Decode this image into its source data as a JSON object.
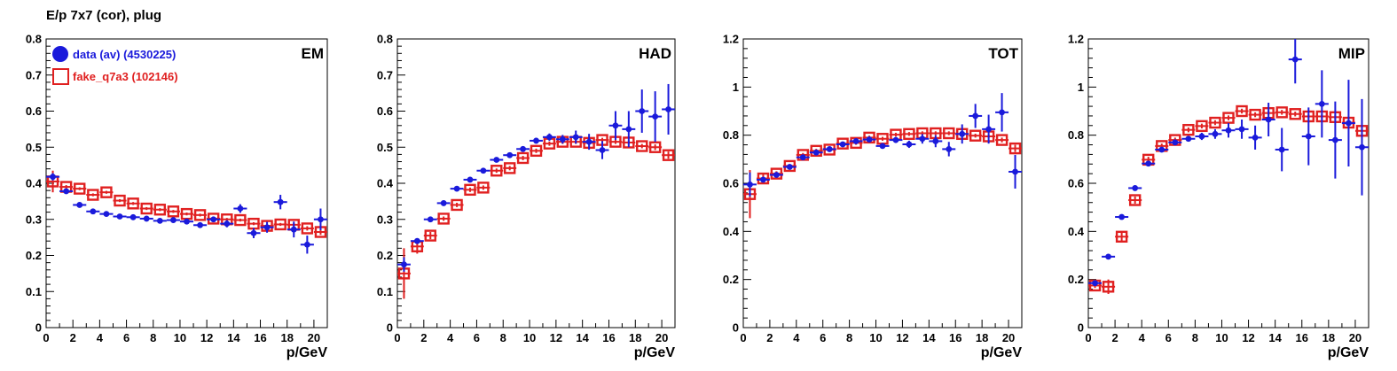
{
  "figure_title": "E/p 7x7 (cor), plug",
  "legend": {
    "entries": [
      {
        "label": "data (av) (4530225)",
        "color": "#1a1adb",
        "marker": "filled-circle"
      },
      {
        "label": "fake_q7a3 (102146)",
        "color": "#e02020",
        "marker": "open-square"
      }
    ]
  },
  "chart_data": [
    {
      "type": "scatter",
      "panel_label": "EM",
      "xlabel": "p/GeV",
      "ylabel": "",
      "xlim": [
        0,
        21
      ],
      "ylim": [
        0,
        0.8
      ],
      "xticks": [
        0,
        2,
        4,
        6,
        8,
        10,
        12,
        14,
        16,
        18,
        20
      ],
      "yticks": [
        0,
        0.1,
        0.2,
        0.3,
        0.4,
        0.5,
        0.6,
        0.7,
        0.8
      ],
      "ytick_labels": [
        "0",
        "0.1",
        "0.2",
        "0.3",
        "0.4",
        "0.5",
        "0.6",
        "0.7",
        "0.8"
      ],
      "series": [
        {
          "name": "data (av) (4530225)",
          "x": [
            0.5,
            1.5,
            2.5,
            3.5,
            4.5,
            5.5,
            6.5,
            7.5,
            8.5,
            9.5,
            10.5,
            11.5,
            12.5,
            13.5,
            14.5,
            15.5,
            16.5,
            17.5,
            18.5,
            19.5,
            20.5
          ],
          "y": [
            0.418,
            0.378,
            0.34,
            0.322,
            0.315,
            0.308,
            0.306,
            0.302,
            0.296,
            0.298,
            0.294,
            0.284,
            0.3,
            0.288,
            0.33,
            0.262,
            0.278,
            0.348,
            0.272,
            0.23,
            0.3
          ],
          "yerr": [
            0.01,
            0.005,
            0.004,
            0.004,
            0.004,
            0.004,
            0.004,
            0.004,
            0.005,
            0.005,
            0.006,
            0.007,
            0.008,
            0.01,
            0.012,
            0.014,
            0.015,
            0.02,
            0.022,
            0.025,
            0.03
          ]
        },
        {
          "name": "fake_q7a3 (102146)",
          "x": [
            0.5,
            1.5,
            2.5,
            3.5,
            4.5,
            5.5,
            6.5,
            7.5,
            8.5,
            9.5,
            10.5,
            11.5,
            12.5,
            13.5,
            14.5,
            15.5,
            16.5,
            17.5,
            18.5,
            19.5,
            20.5
          ],
          "y": [
            0.405,
            0.39,
            0.385,
            0.368,
            0.375,
            0.352,
            0.344,
            0.33,
            0.327,
            0.322,
            0.315,
            0.312,
            0.302,
            0.3,
            0.298,
            0.288,
            0.282,
            0.286,
            0.285,
            0.275,
            0.265
          ],
          "yerr": [
            0.03,
            0.005,
            0.004,
            0.004,
            0.004,
            0.004,
            0.004,
            0.004,
            0.004,
            0.004,
            0.004,
            0.004,
            0.004,
            0.004,
            0.004,
            0.004,
            0.004,
            0.004,
            0.005,
            0.006,
            0.008
          ]
        }
      ]
    },
    {
      "type": "scatter",
      "panel_label": "HAD",
      "xlabel": "p/GeV",
      "ylabel": "",
      "xlim": [
        0,
        21
      ],
      "ylim": [
        0,
        0.8
      ],
      "xticks": [
        0,
        2,
        4,
        6,
        8,
        10,
        12,
        14,
        16,
        18,
        20
      ],
      "yticks": [
        0,
        0.1,
        0.2,
        0.3,
        0.4,
        0.5,
        0.6,
        0.7,
        0.8
      ],
      "ytick_labels": [
        "0",
        "0.1",
        "0.2",
        "0.3",
        "0.4",
        "0.5",
        "0.6",
        "0.7",
        "0.8"
      ],
      "series": [
        {
          "name": "data (av) (4530225)",
          "x": [
            0.5,
            1.5,
            2.5,
            3.5,
            4.5,
            5.5,
            6.5,
            7.5,
            8.5,
            9.5,
            10.5,
            11.5,
            12.5,
            13.5,
            14.5,
            15.5,
            16.5,
            17.5,
            18.5,
            19.5,
            20.5
          ],
          "y": [
            0.175,
            0.24,
            0.3,
            0.345,
            0.385,
            0.41,
            0.435,
            0.465,
            0.478,
            0.495,
            0.518,
            0.528,
            0.522,
            0.528,
            0.515,
            0.492,
            0.56,
            0.55,
            0.6,
            0.585,
            0.605
          ],
          "yerr": [
            0.02,
            0.005,
            0.004,
            0.004,
            0.004,
            0.004,
            0.004,
            0.005,
            0.006,
            0.007,
            0.008,
            0.01,
            0.012,
            0.018,
            0.022,
            0.025,
            0.04,
            0.05,
            0.06,
            0.07,
            0.07
          ]
        },
        {
          "name": "fake_q7a3 (102146)",
          "x": [
            0.5,
            1.5,
            2.5,
            3.5,
            4.5,
            5.5,
            6.5,
            7.5,
            8.5,
            9.5,
            10.5,
            11.5,
            12.5,
            13.5,
            14.5,
            15.5,
            16.5,
            17.5,
            18.5,
            19.5,
            20.5
          ],
          "y": [
            0.15,
            0.225,
            0.255,
            0.302,
            0.34,
            0.382,
            0.388,
            0.435,
            0.442,
            0.47,
            0.49,
            0.51,
            0.515,
            0.515,
            0.512,
            0.52,
            0.515,
            0.513,
            0.503,
            0.5,
            0.478
          ],
          "yerr": [
            0.07,
            0.02,
            0.01,
            0.006,
            0.006,
            0.006,
            0.006,
            0.006,
            0.006,
            0.006,
            0.006,
            0.006,
            0.006,
            0.006,
            0.006,
            0.006,
            0.006,
            0.006,
            0.006,
            0.008,
            0.01
          ]
        }
      ]
    },
    {
      "type": "scatter",
      "panel_label": "TOT",
      "xlabel": "p/GeV",
      "ylabel": "",
      "xlim": [
        0,
        21
      ],
      "ylim": [
        0,
        1.2
      ],
      "xticks": [
        0,
        2,
        4,
        6,
        8,
        10,
        12,
        14,
        16,
        18,
        20
      ],
      "yticks": [
        0,
        0.2,
        0.4,
        0.6,
        0.8,
        1.0,
        1.2
      ],
      "ytick_labels": [
        "0",
        "0.2",
        "0.4",
        "0.6",
        "0.8",
        "1",
        "1.2"
      ],
      "series": [
        {
          "name": "data (av) (4530225)",
          "x": [
            0.5,
            1.5,
            2.5,
            3.5,
            4.5,
            5.5,
            6.5,
            7.5,
            8.5,
            9.5,
            10.5,
            11.5,
            12.5,
            13.5,
            14.5,
            15.5,
            16.5,
            17.5,
            18.5,
            19.5,
            20.5
          ],
          "y": [
            0.595,
            0.615,
            0.635,
            0.668,
            0.708,
            0.728,
            0.742,
            0.762,
            0.775,
            0.782,
            0.755,
            0.78,
            0.762,
            0.785,
            0.775,
            0.742,
            0.805,
            0.88,
            0.825,
            0.895,
            0.648
          ],
          "yerr": [
            0.05,
            0.006,
            0.005,
            0.005,
            0.005,
            0.005,
            0.005,
            0.006,
            0.007,
            0.008,
            0.01,
            0.012,
            0.015,
            0.02,
            0.025,
            0.03,
            0.04,
            0.05,
            0.06,
            0.08,
            0.07
          ]
        },
        {
          "name": "fake_q7a3 (102146)",
          "x": [
            0.5,
            1.5,
            2.5,
            3.5,
            4.5,
            5.5,
            6.5,
            7.5,
            8.5,
            9.5,
            10.5,
            11.5,
            12.5,
            13.5,
            14.5,
            15.5,
            16.5,
            17.5,
            18.5,
            19.5,
            20.5
          ],
          "y": [
            0.555,
            0.62,
            0.64,
            0.672,
            0.718,
            0.735,
            0.74,
            0.765,
            0.768,
            0.79,
            0.785,
            0.802,
            0.805,
            0.808,
            0.808,
            0.808,
            0.805,
            0.798,
            0.795,
            0.78,
            0.745
          ],
          "yerr": [
            0.1,
            0.02,
            0.01,
            0.008,
            0.008,
            0.008,
            0.008,
            0.008,
            0.008,
            0.008,
            0.008,
            0.008,
            0.008,
            0.008,
            0.008,
            0.008,
            0.008,
            0.008,
            0.008,
            0.01,
            0.015
          ]
        }
      ]
    },
    {
      "type": "scatter",
      "panel_label": "MIP",
      "xlabel": "p/GeV",
      "ylabel": "",
      "xlim": [
        0,
        21
      ],
      "ylim": [
        0,
        1.2
      ],
      "xticks": [
        0,
        2,
        4,
        6,
        8,
        10,
        12,
        14,
        16,
        18,
        20
      ],
      "yticks": [
        0,
        0.2,
        0.4,
        0.6,
        0.8,
        1.0,
        1.2
      ],
      "ytick_labels": [
        "0",
        "0.2",
        "0.4",
        "0.6",
        "0.8",
        "1",
        "1.2"
      ],
      "series": [
        {
          "name": "data (av) (4530225)",
          "x": [
            0.5,
            1.5,
            2.5,
            3.5,
            4.5,
            5.5,
            6.5,
            7.5,
            8.5,
            9.5,
            10.5,
            11.5,
            12.5,
            13.5,
            14.5,
            15.5,
            16.5,
            17.5,
            18.5,
            19.5,
            20.5
          ],
          "y": [
            0.185,
            0.295,
            0.46,
            0.58,
            0.682,
            0.74,
            0.77,
            0.785,
            0.795,
            0.805,
            0.82,
            0.825,
            0.79,
            0.865,
            0.74,
            1.115,
            0.795,
            0.93,
            0.78,
            0.85,
            0.75
          ],
          "yerr": [
            0.005,
            0.004,
            0.005,
            0.005,
            0.006,
            0.007,
            0.008,
            0.01,
            0.015,
            0.02,
            0.03,
            0.04,
            0.05,
            0.07,
            0.09,
            0.1,
            0.12,
            0.14,
            0.16,
            0.18,
            0.2
          ]
        },
        {
          "name": "fake_q7a3 (102146)",
          "x": [
            0.5,
            1.5,
            2.5,
            3.5,
            4.5,
            5.5,
            6.5,
            7.5,
            8.5,
            9.5,
            10.5,
            11.5,
            12.5,
            13.5,
            14.5,
            15.5,
            16.5,
            17.5,
            18.5,
            19.5,
            20.5
          ],
          "y": [
            0.175,
            0.17,
            0.378,
            0.53,
            0.698,
            0.755,
            0.78,
            0.822,
            0.838,
            0.852,
            0.872,
            0.9,
            0.885,
            0.892,
            0.895,
            0.888,
            0.878,
            0.878,
            0.875,
            0.852,
            0.818
          ],
          "yerr": [
            0.01,
            0.03,
            0.02,
            0.015,
            0.012,
            0.01,
            0.01,
            0.01,
            0.01,
            0.01,
            0.01,
            0.01,
            0.01,
            0.01,
            0.01,
            0.01,
            0.01,
            0.01,
            0.01,
            0.012,
            0.015
          ]
        }
      ]
    }
  ]
}
